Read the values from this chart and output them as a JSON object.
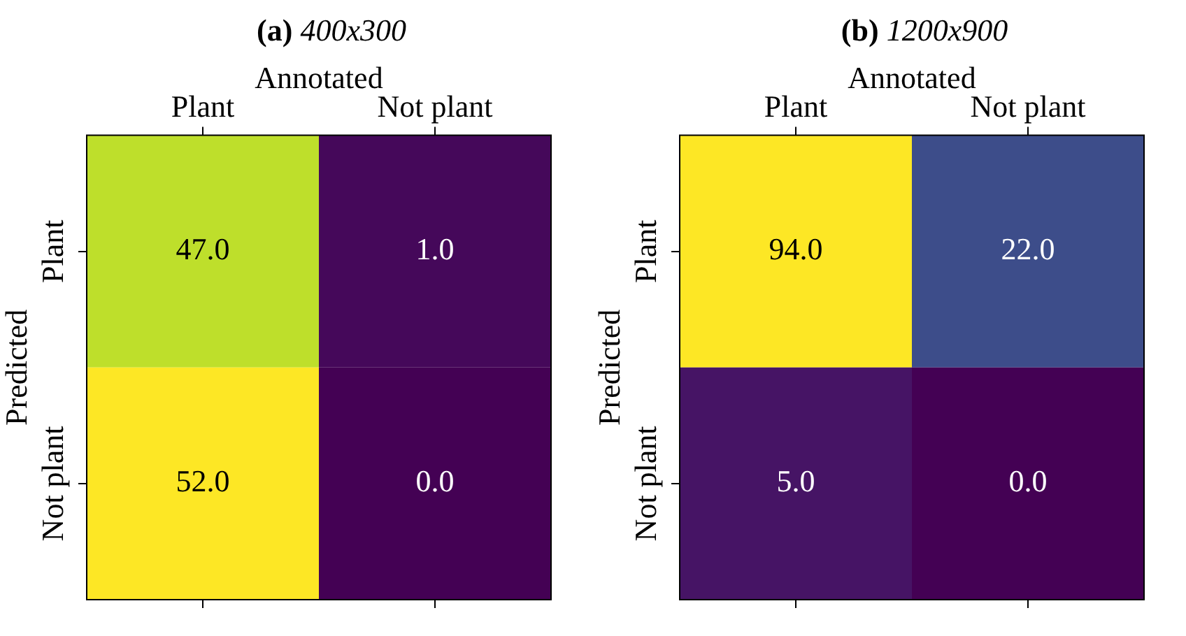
{
  "chart_data": [
    {
      "type": "heatmap",
      "title": "(a) 400x300",
      "xlabel": "Annotated",
      "ylabel": "Predicted",
      "categories": [
        "Plant",
        "Not plant"
      ],
      "y_categories": [
        "Plant",
        "Not plant"
      ],
      "cells": [
        [
          47,
          1
        ],
        [
          52,
          0
        ]
      ],
      "cell_labels": [
        [
          "47.0",
          "1.0"
        ],
        [
          "52.0",
          "0.0"
        ]
      ]
    },
    {
      "type": "heatmap",
      "title": "(b) 1200x900",
      "xlabel": "Annotated",
      "ylabel": "Predicted",
      "categories": [
        "Plant",
        "Not plant"
      ],
      "y_categories": [
        "Plant",
        "Not plant"
      ],
      "cells": [
        [
          94,
          22
        ],
        [
          5,
          0
        ]
      ],
      "cell_labels": [
        [
          "94.0",
          "22.0"
        ],
        [
          "5.0",
          "0.0"
        ]
      ]
    }
  ]
}
